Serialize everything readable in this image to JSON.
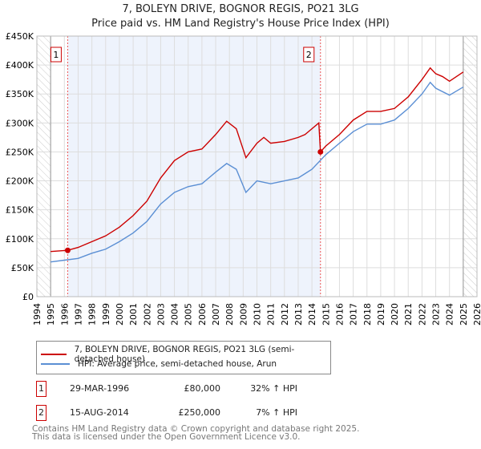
{
  "chart_data": {
    "type": "line",
    "title": "7, BOLEYN DRIVE, BOGNOR REGIS, PO21 3LG",
    "subtitle": "Price paid vs. HM Land Registry's House Price Index (HPI)",
    "xlim": [
      1994,
      2026
    ],
    "ylim": [
      0,
      450000
    ],
    "yticks": [
      0,
      50000,
      100000,
      150000,
      200000,
      250000,
      300000,
      350000,
      400000,
      450000
    ],
    "ytick_labels": [
      "£0",
      "£50K",
      "£100K",
      "£150K",
      "£200K",
      "£250K",
      "£300K",
      "£350K",
      "£400K",
      "£450K"
    ],
    "xticks": [
      1994,
      1995,
      1996,
      1997,
      1998,
      1999,
      2000,
      2001,
      2002,
      2003,
      2004,
      2005,
      2006,
      2007,
      2008,
      2009,
      2010,
      2011,
      2012,
      2013,
      2014,
      2015,
      2016,
      2017,
      2018,
      2019,
      2020,
      2021,
      2022,
      2023,
      2024,
      2025,
      2026
    ],
    "grid": true,
    "series": [
      {
        "name": "7, BOLEYN DRIVE, BOGNOR REGIS, PO21 3LG (semi-detached house)",
        "color": "#cc0000",
        "x": [
          1995,
          1996.24,
          1997,
          1998,
          1999,
          2000,
          2001,
          2002,
          2003,
          2004,
          2005,
          2006,
          2007,
          2007.8,
          2008.5,
          2009.2,
          2010,
          2010.5,
          2011,
          2012,
          2013,
          2013.5,
          2014.5,
          2014.62,
          2015,
          2016,
          2017,
          2018,
          2019,
          2020,
          2021,
          2022,
          2022.6,
          2023,
          2023.5,
          2024,
          2024.5,
          2025
        ],
        "y": [
          78000,
          80000,
          85000,
          95000,
          105000,
          120000,
          140000,
          165000,
          205000,
          235000,
          250000,
          255000,
          280000,
          303000,
          290000,
          240000,
          265000,
          275000,
          265000,
          268000,
          275000,
          280000,
          300000,
          250000,
          260000,
          280000,
          305000,
          320000,
          320000,
          325000,
          345000,
          375000,
          395000,
          385000,
          380000,
          372000,
          380000,
          388000
        ]
      },
      {
        "name": "HPI: Average price, semi-detached house, Arun",
        "color": "#5b8fd4",
        "x": [
          1995,
          1996,
          1997,
          1998,
          1999,
          2000,
          2001,
          2002,
          2003,
          2004,
          2005,
          2006,
          2007,
          2007.8,
          2008.5,
          2009.2,
          2010,
          2011,
          2012,
          2013,
          2014,
          2015,
          2016,
          2017,
          2018,
          2019,
          2020,
          2021,
          2022,
          2022.6,
          2023,
          2024,
          2025
        ],
        "y": [
          60000,
          63000,
          66000,
          75000,
          82000,
          95000,
          110000,
          130000,
          160000,
          180000,
          190000,
          195000,
          215000,
          230000,
          220000,
          180000,
          200000,
          195000,
          200000,
          205000,
          220000,
          245000,
          265000,
          285000,
          298000,
          298000,
          305000,
          325000,
          350000,
          370000,
          360000,
          348000,
          362000
        ]
      }
    ],
    "annotations": [
      {
        "label": "1",
        "x": 1996.24,
        "y": 80000
      },
      {
        "label": "2",
        "x": 2014.62,
        "y": 250000
      }
    ]
  },
  "transactions": [
    {
      "num": "1",
      "date": "29-MAR-1996",
      "price": "£80,000",
      "hpi": "32% ↑ HPI"
    },
    {
      "num": "2",
      "date": "15-AUG-2014",
      "price": "£250,000",
      "hpi": "7% ↑ HPI"
    }
  ],
  "footer": {
    "line1": "Contains HM Land Registry data © Crown copyright and database right 2025.",
    "line2": "This data is licensed under the Open Government Licence v3.0."
  }
}
